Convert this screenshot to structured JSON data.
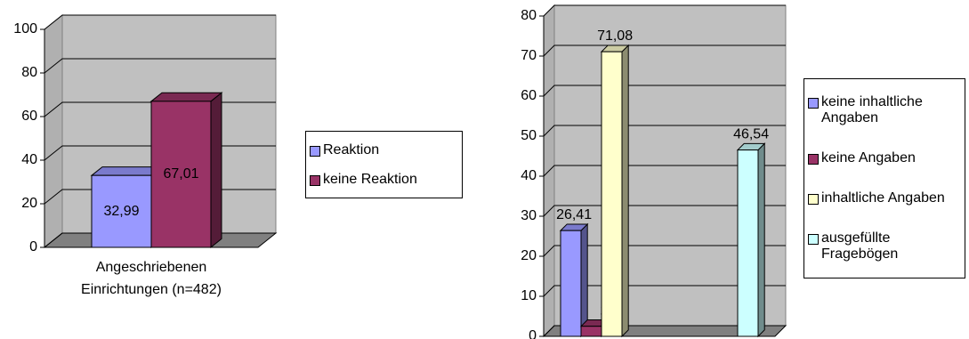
{
  "chart_data": [
    {
      "type": "bar3d",
      "categories": [
        "Angeschriebenen Einrichtungen (n=482)"
      ],
      "series": [
        {
          "name": "Reaktion",
          "color": "#9999ff",
          "values": [
            32.99
          ],
          "value_labels": [
            "32,99"
          ]
        },
        {
          "name": "keine Reaktion",
          "color": "#993366",
          "values": [
            67.01
          ],
          "value_labels": [
            "67,01"
          ]
        }
      ],
      "ylim": [
        0,
        100
      ],
      "yticks": [
        0,
        20,
        40,
        60,
        80,
        100
      ],
      "grid": true,
      "legend": "right"
    },
    {
      "type": "bar3d",
      "categories": [
        null,
        null
      ],
      "series": [
        {
          "name": "keine inhaltliche Angaben",
          "color": "#9999ff",
          "values": [
            26.41,
            null
          ],
          "value_labels": [
            "26,41",
            null
          ]
        },
        {
          "name": "keine Angaben",
          "color": "#993366",
          "values": [
            2.51,
            null
          ],
          "value_labels": [
            "2,51",
            null
          ]
        },
        {
          "name": "inhaltliche Angaben",
          "color": "#ffffcc",
          "values": [
            71.08,
            null
          ],
          "value_labels": [
            "71,08",
            null
          ]
        },
        {
          "name": "ausgefüllte Fragebögen",
          "color": "#ccffff",
          "values": [
            null,
            46.54
          ],
          "value_labels": [
            null,
            "46,54"
          ]
        }
      ],
      "ylim": [
        0,
        80
      ],
      "yticks": [
        0,
        10,
        20,
        30,
        40,
        50,
        60,
        70,
        80
      ],
      "grid": true,
      "legend": "right"
    }
  ]
}
